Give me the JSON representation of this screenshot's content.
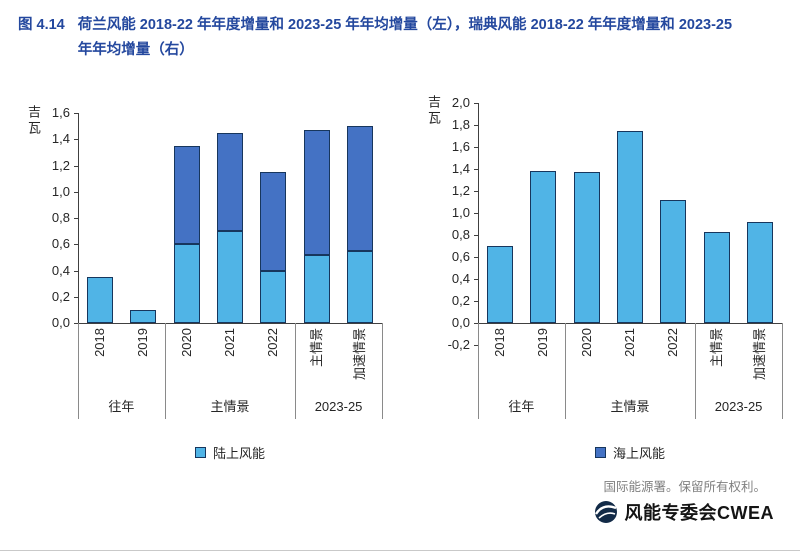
{
  "figure": {
    "label": "图 4.14",
    "title": "荷兰风能 2018-22 年年度增量和 2023-25 年年均增量（左），瑞典风能 2018-22 年年度增量和 2023-25 年年均增量（右）"
  },
  "footer": {
    "copyright": "国际能源署。保留所有权利。",
    "logo_text": "风能专委会CWEA"
  },
  "colors": {
    "title_blue": "#24489e",
    "onshore_light_blue": "#50b4e6",
    "offshore_dark_blue": "#4472c4",
    "bar_border": "#17365d",
    "axis_gray": "#404040",
    "copyright_gray": "#808080"
  },
  "chart_data": [
    {
      "type": "bar",
      "stacked": true,
      "position": "left",
      "subject": "荷兰风能",
      "ylabel": "吉瓦",
      "ylim": [
        0,
        1.6
      ],
      "ytick_step": 0.2,
      "ytick_labels": [
        "1,6",
        "1,4",
        "1,2",
        "1,0",
        "0,8",
        "0,6",
        "0,4",
        "0,2",
        "0,0"
      ],
      "categories": [
        "2018",
        "2019",
        "2020",
        "2021",
        "2022",
        "主情景",
        "加速情景"
      ],
      "groups": [
        {
          "label": "往年",
          "span": [
            0,
            1
          ]
        },
        {
          "label": "主情景",
          "span": [
            2,
            4
          ]
        },
        {
          "label": "2023-25",
          "span": [
            5,
            6
          ]
        }
      ],
      "series": [
        {
          "name": "陆上风能",
          "color_key": "onshore_light_blue",
          "values": [
            0.35,
            0.1,
            0.6,
            0.7,
            0.4,
            0.52,
            0.55
          ]
        },
        {
          "name": "海上风能",
          "color_key": "offshore_dark_blue",
          "values": [
            0,
            0,
            0.75,
            0.75,
            0.75,
            0.95,
            0.95
          ]
        }
      ],
      "legend": [
        {
          "label": "陆上风能",
          "color_key": "onshore_light_blue"
        }
      ],
      "grid": false
    },
    {
      "type": "bar",
      "stacked": false,
      "position": "right",
      "subject": "瑞典风能",
      "ylabel": "吉瓦",
      "ylim": [
        -0.2,
        2.0
      ],
      "ytick_step": 0.2,
      "ytick_labels": [
        "2,0",
        "1,8",
        "1,6",
        "1,4",
        "1,2",
        "1,0",
        "0,8",
        "0,6",
        "0,4",
        "0,2",
        "0,0",
        "-0,2"
      ],
      "categories": [
        "2018",
        "2019",
        "2020",
        "2021",
        "2022",
        "主情景",
        "加速情景"
      ],
      "groups": [
        {
          "label": "往年",
          "span": [
            0,
            1
          ]
        },
        {
          "label": "主情景",
          "span": [
            2,
            4
          ]
        },
        {
          "label": "2023-25",
          "span": [
            5,
            6
          ]
        }
      ],
      "series": [
        {
          "name": "陆上风能",
          "color_key": "onshore_light_blue",
          "values": [
            0.7,
            1.38,
            1.37,
            1.75,
            1.12,
            0.83,
            0.92
          ]
        }
      ],
      "legend": [
        {
          "label": "海上风能",
          "color_key": "offshore_dark_blue"
        }
      ],
      "grid": false
    }
  ]
}
